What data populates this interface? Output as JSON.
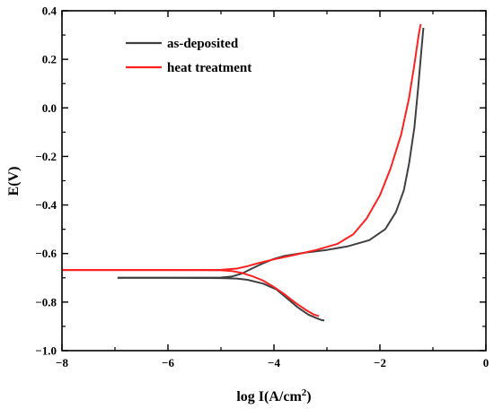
{
  "chart_data": {
    "type": "line",
    "title": "",
    "xlabel": "log I(A/cm",
    "xlabel_sup": "2",
    "xlabel_end": ")",
    "ylabel": "E(V)",
    "xlim": [
      -8,
      0
    ],
    "ylim": [
      -1.0,
      0.4
    ],
    "xticks": [
      -8,
      -6,
      -4,
      -2,
      0
    ],
    "xtick_labels": [
      "−8",
      "−6",
      "−4",
      "−2",
      "0"
    ],
    "yticks": [
      0.4,
      0.2,
      0.0,
      -0.2,
      -0.4,
      -0.6,
      -0.8,
      -1.0
    ],
    "ytick_labels": [
      "0.4",
      "0.2",
      "0.0",
      "−0.2",
      "−0.4",
      "−0.6",
      "−0.8",
      "−1.0"
    ],
    "grid": false,
    "legend_position": "top-left",
    "series": [
      {
        "name": "as-deposited",
        "color": "#404040",
        "branches": [
          [
            [
              -6.95,
              -0.7
            ],
            [
              -6.0,
              -0.7
            ],
            [
              -5.0,
              -0.701
            ],
            [
              -4.7,
              -0.703
            ],
            [
              -4.5,
              -0.708
            ],
            [
              -4.2,
              -0.724
            ],
            [
              -3.95,
              -0.748
            ],
            [
              -3.75,
              -0.785
            ],
            [
              -3.55,
              -0.822
            ],
            [
              -3.35,
              -0.852
            ],
            [
              -3.2,
              -0.866
            ],
            [
              -3.1,
              -0.874
            ],
            [
              -3.05,
              -0.876
            ]
          ],
          [
            [
              -6.95,
              -0.7
            ],
            [
              -6.0,
              -0.7
            ],
            [
              -5.0,
              -0.699
            ],
            [
              -4.8,
              -0.695
            ],
            [
              -4.6,
              -0.682
            ],
            [
              -4.4,
              -0.66
            ],
            [
              -4.2,
              -0.64
            ],
            [
              -4.0,
              -0.622
            ],
            [
              -3.8,
              -0.61
            ],
            [
              -3.4,
              -0.596
            ],
            [
              -3.0,
              -0.585
            ],
            [
              -2.6,
              -0.57
            ],
            [
              -2.2,
              -0.545
            ],
            [
              -1.9,
              -0.5
            ],
            [
              -1.7,
              -0.43
            ],
            [
              -1.55,
              -0.34
            ],
            [
              -1.45,
              -0.23
            ],
            [
              -1.35,
              -0.08
            ],
            [
              -1.28,
              0.08
            ],
            [
              -1.22,
              0.23
            ],
            [
              -1.18,
              0.33
            ]
          ]
        ]
      },
      {
        "name": "heat treatment",
        "color": "#ff2020",
        "branches": [
          [
            [
              -8.0,
              -0.668
            ],
            [
              -6.0,
              -0.668
            ],
            [
              -5.0,
              -0.669
            ],
            [
              -4.8,
              -0.672
            ],
            [
              -4.6,
              -0.68
            ],
            [
              -4.4,
              -0.694
            ],
            [
              -4.2,
              -0.712
            ],
            [
              -4.0,
              -0.738
            ],
            [
              -3.8,
              -0.768
            ],
            [
              -3.6,
              -0.802
            ],
            [
              -3.4,
              -0.832
            ],
            [
              -3.25,
              -0.851
            ],
            [
              -3.15,
              -0.858
            ]
          ],
          [
            [
              -8.0,
              -0.668
            ],
            [
              -6.0,
              -0.668
            ],
            [
              -5.0,
              -0.667
            ],
            [
              -4.7,
              -0.662
            ],
            [
              -4.5,
              -0.652
            ],
            [
              -4.3,
              -0.64
            ],
            [
              -4.0,
              -0.624
            ],
            [
              -3.6,
              -0.605
            ],
            [
              -3.2,
              -0.585
            ],
            [
              -2.8,
              -0.56
            ],
            [
              -2.5,
              -0.52
            ],
            [
              -2.25,
              -0.455
            ],
            [
              -2.0,
              -0.36
            ],
            [
              -1.8,
              -0.25
            ],
            [
              -1.6,
              -0.11
            ],
            [
              -1.45,
              0.04
            ],
            [
              -1.35,
              0.18
            ],
            [
              -1.27,
              0.3
            ],
            [
              -1.23,
              0.345
            ]
          ]
        ]
      }
    ]
  }
}
